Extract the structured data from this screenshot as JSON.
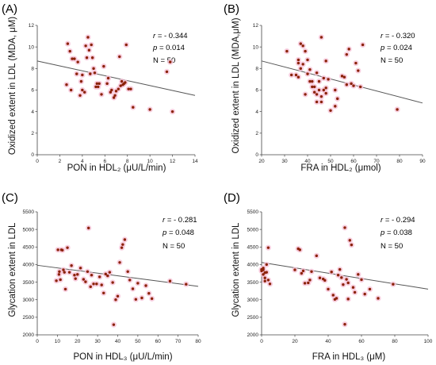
{
  "chart_data": [
    {
      "type": "scatter",
      "panel_label": "(A)",
      "xlabel": "PON in HDL₂ (μU/L/min)",
      "ylabel": "Oxidized extent in LDL (MDA, μM)",
      "xlim": [
        0,
        14
      ],
      "ylim": [
        0,
        12
      ],
      "xticks": [
        "0",
        "2",
        "4",
        "6",
        "8",
        "10",
        "12",
        "14"
      ],
      "yticks": [
        "0",
        "2",
        "4",
        "6",
        "8",
        "10",
        "12"
      ],
      "stats": {
        "r_symbol": "r",
        "r_value": "= - 0.344",
        "p_symbol": "p",
        "p_value": "= 0.014",
        "n_text": "N = 50"
      },
      "trendline": {
        "x": [
          0,
          14
        ],
        "y": [
          8.7,
          5.5
        ]
      },
      "points": {
        "x": [
          2.7,
          2.9,
          3.1,
          3.3,
          3.5,
          2.6,
          3.0,
          3.6,
          4.0,
          4.3,
          4.5,
          4.6,
          4.4,
          4.8,
          4.9,
          5.0,
          5.1,
          5.3,
          5.4,
          5.5,
          4.7,
          3.8,
          4.2,
          4.0,
          3.9,
          5.2,
          5.7,
          5.9,
          6.2,
          6.3,
          6.5,
          6.6,
          6.8,
          6.9,
          7.0,
          7.2,
          7.4,
          7.5,
          7.6,
          7.7,
          7.8,
          7.9,
          8.1,
          8.3,
          8.5,
          7.3,
          10.0,
          11.5,
          11.8,
          12.0
        ],
        "y": [
          10.3,
          9.6,
          8.9,
          8.9,
          7.5,
          6.5,
          6.0,
          8.6,
          7.4,
          10.1,
          10.9,
          9.7,
          9.0,
          10.2,
          9.0,
          8.0,
          7.6,
          6.6,
          6.3,
          6.6,
          7.5,
          5.5,
          5.8,
          6.0,
          6.8,
          6.3,
          5.6,
          8.2,
          6.6,
          7.1,
          5.8,
          6.0,
          5.3,
          5.5,
          5.9,
          6.1,
          6.4,
          6.8,
          6.5,
          6.6,
          6.7,
          10.2,
          6.1,
          6.1,
          4.4,
          9.1,
          4.2,
          7.7,
          8.6,
          4.0
        ]
      }
    },
    {
      "type": "scatter",
      "panel_label": "(B)",
      "xlabel": "FRA in HDL₂ (μmol)",
      "ylabel": "Oxidized extent in LDL (MDA,μM)",
      "xlim": [
        20,
        90
      ],
      "ylim": [
        0,
        12
      ],
      "xticks": [
        "20",
        "30",
        "40",
        "50",
        "60",
        "70",
        "80",
        "90"
      ],
      "yticks": [
        "0",
        "2",
        "4",
        "6",
        "8",
        "10",
        "12"
      ],
      "stats": {
        "r_symbol": "r",
        "r_value": "= - 0.320",
        "p_symbol": "p",
        "p_value": "= 0.024",
        "n_text": "N = 50"
      },
      "trendline": {
        "x": [
          20,
          90
        ],
        "y": [
          8.7,
          4.8
        ]
      },
      "points": {
        "x": [
          31,
          33,
          35,
          36,
          37,
          38,
          39,
          40,
          38,
          37,
          36,
          40,
          41,
          42,
          42,
          43,
          44,
          45,
          45,
          46,
          46,
          47,
          47,
          48,
          48,
          44,
          39,
          41,
          43,
          46,
          50,
          52,
          53,
          55,
          57,
          58,
          59,
          60,
          61,
          62,
          63,
          64,
          52,
          49,
          48,
          56,
          57,
          36,
          79,
          44
        ],
        "y": [
          9.6,
          7.4,
          7.4,
          8.5,
          10.3,
          10.1,
          9.6,
          8.8,
          8.4,
          8.0,
          7.2,
          7.5,
          7.9,
          6.8,
          6.3,
          5.8,
          5.6,
          6.0,
          6.8,
          5.4,
          10.9,
          6.0,
          7.1,
          5.7,
          8.7,
          7.6,
          5.6,
          6.8,
          6.3,
          4.9,
          4.1,
          4.5,
          5.2,
          7.3,
          9.3,
          9.8,
          6.6,
          6.4,
          8.5,
          7.8,
          6.3,
          10.2,
          6.0,
          7.0,
          6.2,
          7.2,
          6.5,
          8.8,
          4.2,
          4.9
        ]
      }
    },
    {
      "type": "scatter",
      "panel_label": "(C)",
      "xlabel": "PON in HDL₃ (μU/L/min)",
      "ylabel": "Glycation extent in LDL",
      "xlim": [
        0,
        80
      ],
      "ylim": [
        2000,
        5500
      ],
      "xticks": [
        "0",
        "10",
        "20",
        "30",
        "40",
        "50",
        "60",
        "70",
        "80"
      ],
      "yticks": [
        "2000",
        "2500",
        "3000",
        "3500",
        "4000",
        "4500",
        "5000",
        "5500"
      ],
      "stats": {
        "r_symbol": "r",
        "r_value": "= - 0.281",
        "p_symbol": "p",
        "p_value": "= 0.048",
        "n_text": "N = 50"
      },
      "trendline": {
        "x": [
          0,
          80
        ],
        "y": [
          3980,
          3380
        ]
      },
      "points": {
        "x": [
          9.5,
          10.3,
          11.0,
          12.0,
          12.5,
          13.0,
          14.0,
          15.0,
          16.0,
          11.5,
          10.8,
          13.5,
          17.0,
          18.5,
          19.0,
          20.0,
          21.5,
          23.0,
          24.0,
          25.0,
          26.5,
          27.0,
          28.0,
          29.5,
          31.0,
          32.0,
          33.0,
          34.0,
          35.0,
          36.0,
          37.5,
          38.0,
          39.0,
          40.0,
          41.0,
          42.0,
          42.5,
          43.5,
          45.0,
          46.0,
          47.5,
          49.0,
          50.0,
          52.0,
          54.0,
          55.5,
          57.0,
          66.0,
          74.0,
          25.5
        ],
        "y": [
          3540,
          4420,
          3800,
          4420,
          4410,
          3850,
          3300,
          4480,
          3780,
          3570,
          3720,
          3780,
          3970,
          3700,
          3600,
          3720,
          3900,
          3580,
          3510,
          3800,
          3370,
          3700,
          3450,
          3450,
          3650,
          3420,
          3190,
          3730,
          3680,
          3780,
          3490,
          2290,
          3000,
          3100,
          4060,
          4480,
          4570,
          4710,
          3800,
          3560,
          3310,
          3010,
          3470,
          3050,
          3400,
          3180,
          3030,
          3530,
          3440,
          5040
        ]
      }
    },
    {
      "type": "scatter",
      "panel_label": "(D)",
      "xlabel": "FRA in HDL₃ (μM)",
      "ylabel": "Glycation extent in LDL",
      "xlim": [
        0,
        100
      ],
      "ylim": [
        2000,
        5500
      ],
      "xticks": [
        "0",
        "20",
        "40",
        "60",
        "80",
        "100"
      ],
      "yticks": [
        "2000",
        "2500",
        "3000",
        "3500",
        "4000",
        "4500",
        "5000",
        "5500"
      ],
      "stats": {
        "r_symbol": "r",
        "r_value": "= - 0.294",
        "p_symbol": "p",
        "p_value": "= 0.038",
        "n_text": "N = 50"
      },
      "trendline": {
        "x": [
          0,
          100
        ],
        "y": [
          4060,
          3300
        ]
      },
      "points": {
        "x": [
          0,
          0,
          1,
          1,
          2,
          2,
          3,
          4,
          5,
          3,
          1,
          2,
          4,
          20,
          22,
          23,
          24,
          25,
          26,
          28,
          29,
          30,
          33,
          35,
          37,
          38,
          40,
          42,
          43,
          44,
          45,
          46,
          47,
          48,
          49,
          50,
          50,
          51,
          52,
          52,
          53,
          54,
          55,
          56,
          58,
          60,
          62,
          65,
          70,
          79
        ],
        "y": [
          3820,
          3860,
          3720,
          3900,
          3530,
          3620,
          4000,
          4480,
          3450,
          3780,
          3850,
          3770,
          3560,
          3850,
          4450,
          4420,
          3750,
          3820,
          3470,
          3480,
          3560,
          3800,
          4250,
          3620,
          3590,
          3550,
          3300,
          3790,
          3130,
          3010,
          3040,
          3700,
          3860,
          3630,
          3430,
          5050,
          2300,
          3580,
          3480,
          3020,
          4690,
          4560,
          3350,
          3210,
          3720,
          3570,
          3160,
          3300,
          3040,
          3440
        ]
      }
    }
  ]
}
